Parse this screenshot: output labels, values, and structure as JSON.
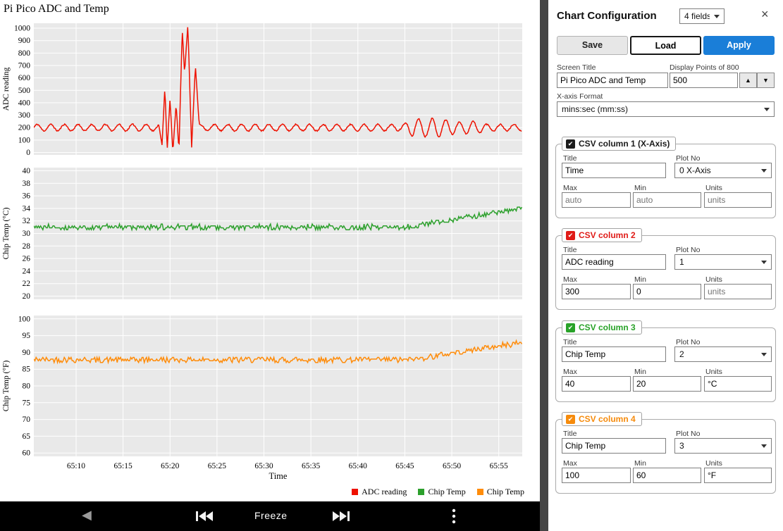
{
  "chart": {
    "title": "Pi Pico ADC and Temp",
    "xlabel": "Time",
    "legend": [
      {
        "label": "ADC reading",
        "color": "#ee1100"
      },
      {
        "label": "Chip Temp",
        "color": "#2ca02c"
      },
      {
        "label": "Chip Temp",
        "color": "#ff8c0a"
      }
    ]
  },
  "chart_data": [
    {
      "type": "line",
      "series_name": "ADC reading",
      "color": "#ee1100",
      "ylabel": "ADC reading",
      "ylim": [
        -20,
        1040
      ],
      "yticks": [
        0,
        100,
        200,
        300,
        400,
        500,
        600,
        700,
        800,
        900,
        1000
      ],
      "x_range": [
        3905.5,
        3957.5
      ],
      "xticks": [
        3910,
        3915,
        3920,
        3925,
        3930,
        3935,
        3940,
        3945,
        3950,
        3955
      ],
      "signal": {
        "kind": "oscillation",
        "baseline": 200,
        "period": 1.45,
        "noise": 5,
        "amplitude_envelope": [
          [
            3905.5,
            26
          ],
          [
            3944.8,
            26
          ],
          [
            3945.8,
            70
          ],
          [
            3948.6,
            74
          ],
          [
            3950.6,
            46
          ],
          [
            3952.4,
            52
          ],
          [
            3953.8,
            26
          ],
          [
            3957.5,
            26
          ]
        ],
        "spike_keypoints": [
          [
            3918.85,
            200
          ],
          [
            3919.15,
            60
          ],
          [
            3919.45,
            520
          ],
          [
            3919.7,
            25
          ],
          [
            3920.0,
            430
          ],
          [
            3920.3,
            5
          ],
          [
            3920.65,
            390
          ],
          [
            3920.95,
            15
          ],
          [
            3921.3,
            990
          ],
          [
            3921.55,
            640
          ],
          [
            3921.9,
            1030
          ],
          [
            3922.3,
            40
          ],
          [
            3922.7,
            700
          ],
          [
            3923.1,
            230
          ],
          [
            3923.6,
            205
          ]
        ]
      }
    },
    {
      "type": "line",
      "series_name": "Chip Temp",
      "color": "#2ca02c",
      "ylabel": "Chip Temp (°C)",
      "ylim": [
        19.5,
        40.5
      ],
      "yticks": [
        20,
        22,
        24,
        26,
        28,
        30,
        32,
        34,
        36,
        38,
        40
      ],
      "x_range": [
        3905.5,
        3957.5
      ],
      "xticks": [
        3910,
        3915,
        3920,
        3925,
        3930,
        3935,
        3940,
        3945,
        3950,
        3955
      ],
      "signal": {
        "kind": "noisy-rise",
        "baseline": 31.0,
        "noise": 0.4,
        "quantize": 0.3,
        "rise_start": 3945.5,
        "end_value": 34.0
      }
    },
    {
      "type": "line",
      "series_name": "Chip Temp",
      "color": "#ff8c0a",
      "ylabel": "Chip Temp (°F)",
      "ylim": [
        59,
        101
      ],
      "yticks": [
        60,
        65,
        70,
        75,
        80,
        85,
        90,
        95,
        100
      ],
      "x_range": [
        3905.5,
        3957.5
      ],
      "xticks": [
        3910,
        3915,
        3920,
        3925,
        3930,
        3935,
        3940,
        3945,
        3950,
        3955
      ],
      "xtick_labels": [
        "65:10",
        "65:15",
        "65:20",
        "65:25",
        "65:30",
        "65:35",
        "65:40",
        "65:45",
        "65:50",
        "65:55"
      ],
      "xlabel": "Time",
      "signal": {
        "kind": "noisy-rise",
        "baseline": 87.8,
        "noise": 0.8,
        "quantize": 0.5,
        "rise_start": 3945.5,
        "end_value": 93.0
      }
    }
  ],
  "bottom_bar": {
    "freeze_label": "Freeze",
    "back_icon": "◀"
  },
  "config": {
    "title": "Chart Configuration",
    "fields_count": "4 fields",
    "close_icon": "×",
    "buttons": {
      "save": "Save",
      "load": "Load",
      "apply": "Apply"
    },
    "screen_title": {
      "label": "Screen Title",
      "value": "Pi Pico ADC and Temp"
    },
    "display_points": {
      "label": "Display Points of 800",
      "value": "500",
      "up_icon": "▲",
      "down_icon": "▼"
    },
    "xaxis_format": {
      "label": "X-axis Format",
      "value": "mins:sec (mm:ss)"
    },
    "field_labels": {
      "title": "Title",
      "plot_no": "Plot No",
      "max": "Max",
      "min": "Min",
      "units": "Units"
    },
    "columns": [
      {
        "name": "CSV column 1 (X-Axis)",
        "color": "#1c1c1c",
        "check_icon": "✔",
        "title": "Time",
        "plot_no": "0 X-Axis",
        "max": "",
        "max_placeholder": "auto",
        "min": "",
        "min_placeholder": "auto",
        "units": "",
        "units_placeholder": "units"
      },
      {
        "name": "CSV column 2",
        "color": "#e01b17",
        "check_icon": "✔",
        "title": "ADC reading",
        "plot_no": "1",
        "max": "300",
        "min": "0",
        "units": "",
        "units_placeholder": "units"
      },
      {
        "name": "CSV column 3",
        "color": "#28a228",
        "check_icon": "✔",
        "title": "Chip Temp",
        "plot_no": "2",
        "max": "40",
        "min": "20",
        "units": "°C",
        "units_placeholder": ""
      },
      {
        "name": "CSV column 4",
        "color": "#f68b0c",
        "check_icon": "✔",
        "title": "Chip Temp",
        "plot_no": "3",
        "max": "100",
        "min": "60",
        "units": "°F",
        "units_placeholder": ""
      }
    ]
  }
}
